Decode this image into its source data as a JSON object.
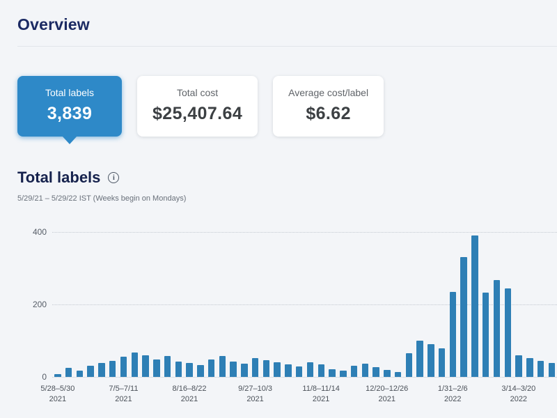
{
  "colors": {
    "accent": "#2e89c8",
    "bar": "#2e7fb5",
    "heading": "#1b2a63",
    "background": "#f3f5f8"
  },
  "icons": {
    "info": "i"
  },
  "header": {
    "title": "Overview"
  },
  "cards": [
    {
      "label": "Total labels",
      "value": "3,839",
      "selected": true
    },
    {
      "label": "Total cost",
      "value": "$25,407.64",
      "selected": false
    },
    {
      "label": "Average cost/label",
      "value": "$6.62",
      "selected": false
    }
  ],
  "section": {
    "title": "Total labels",
    "subtitle": "5/29/21 – 5/29/22 IST (Weeks begin on Mondays)"
  },
  "chart_data": {
    "type": "bar",
    "title": "Total labels",
    "xlabel": "",
    "ylabel": "",
    "ylim": [
      0,
      400
    ],
    "yticks": [
      0,
      200,
      400
    ],
    "grid": true,
    "legend": false,
    "values": [
      8,
      25,
      18,
      30,
      38,
      45,
      55,
      68,
      60,
      48,
      58,
      42,
      38,
      32,
      48,
      58,
      42,
      36,
      52,
      46,
      40,
      34,
      28,
      40,
      34,
      22,
      18,
      30,
      36,
      26,
      20,
      14,
      65,
      100,
      90,
      78,
      235,
      330,
      390,
      232,
      268,
      245,
      60,
      52,
      45,
      38
    ],
    "xticks": [
      {
        "index": 0,
        "label": "5/28–5/30",
        "year": "2021"
      },
      {
        "index": 6,
        "label": "7/5–7/11",
        "year": "2021"
      },
      {
        "index": 12,
        "label": "8/16–8/22",
        "year": "2021"
      },
      {
        "index": 18,
        "label": "9/27–10/3",
        "year": "2021"
      },
      {
        "index": 24,
        "label": "11/8–11/14",
        "year": "2021"
      },
      {
        "index": 30,
        "label": "12/20–12/26",
        "year": "2021"
      },
      {
        "index": 36,
        "label": "1/31–2/6",
        "year": "2022"
      },
      {
        "index": 42,
        "label": "3/14–3/20",
        "year": "2022"
      }
    ]
  }
}
